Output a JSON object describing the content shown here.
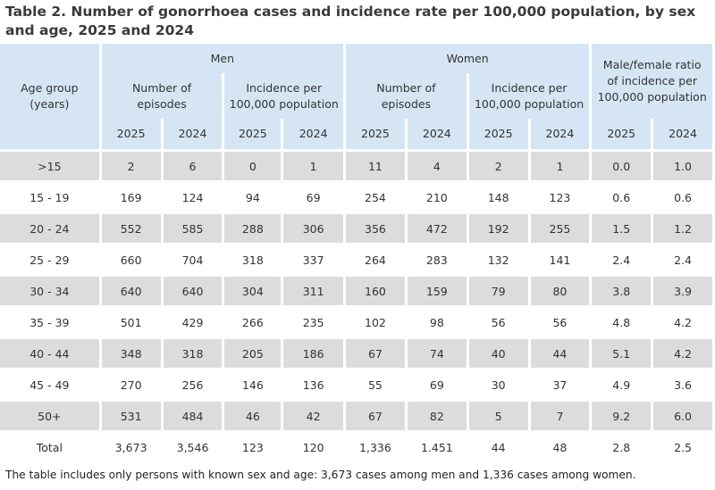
{
  "title": "Table 2. Number of gonorrhoea cases and incidence rate per 100,000 population, by sex and age, 2025 and 2024",
  "header": {
    "age_group": "Age group (years)",
    "men": "Men",
    "women": "Women",
    "ratio": "Male/female ratio of incidence per 100,000 population",
    "episodes": "Number of episodes",
    "incidence": "Incidence per 100,000 population",
    "years": [
      "2025",
      "2024"
    ]
  },
  "rows": [
    {
      "age": ">15",
      "values": [
        "2",
        "6",
        "0",
        "1",
        "11",
        "4",
        "2",
        "1",
        "0.0",
        "1.0"
      ]
    },
    {
      "age": "15 - 19",
      "values": [
        "169",
        "124",
        "94",
        "69",
        "254",
        "210",
        "148",
        "123",
        "0.6",
        "0.6"
      ]
    },
    {
      "age": "20 - 24",
      "values": [
        "552",
        "585",
        "288",
        "306",
        "356",
        "472",
        "192",
        "255",
        "1.5",
        "1.2"
      ]
    },
    {
      "age": "25 - 29",
      "values": [
        "660",
        "704",
        "318",
        "337",
        "264",
        "283",
        "132",
        "141",
        "2.4",
        "2.4"
      ]
    },
    {
      "age": "30 - 34",
      "values": [
        "640",
        "640",
        "304",
        "311",
        "160",
        "159",
        "79",
        "80",
        "3.8",
        "3.9"
      ]
    },
    {
      "age": "35 - 39",
      "values": [
        "501",
        "429",
        "266",
        "235",
        "102",
        "98",
        "56",
        "56",
        "4.8",
        "4.2"
      ]
    },
    {
      "age": "40 - 44",
      "values": [
        "348",
        "318",
        "205",
        "186",
        "67",
        "74",
        "40",
        "44",
        "5.1",
        "4.2"
      ]
    },
    {
      "age": "45 - 49",
      "values": [
        "270",
        "256",
        "146",
        "136",
        "55",
        "69",
        "30",
        "37",
        "4.9",
        "3.6"
      ]
    },
    {
      "age": "50+",
      "values": [
        "531",
        "484",
        "46",
        "42",
        "67",
        "82",
        "5",
        "7",
        "9.2",
        "6.0"
      ]
    },
    {
      "age": "Total",
      "values": [
        "3,673",
        "3,546",
        "123",
        "120",
        "1,336",
        "1.451",
        "44",
        "48",
        "2.8",
        "2.5"
      ]
    }
  ],
  "footnote": "The table includes only persons with known sex and age: 3,673 cases among men and 1,336 cases among women."
}
